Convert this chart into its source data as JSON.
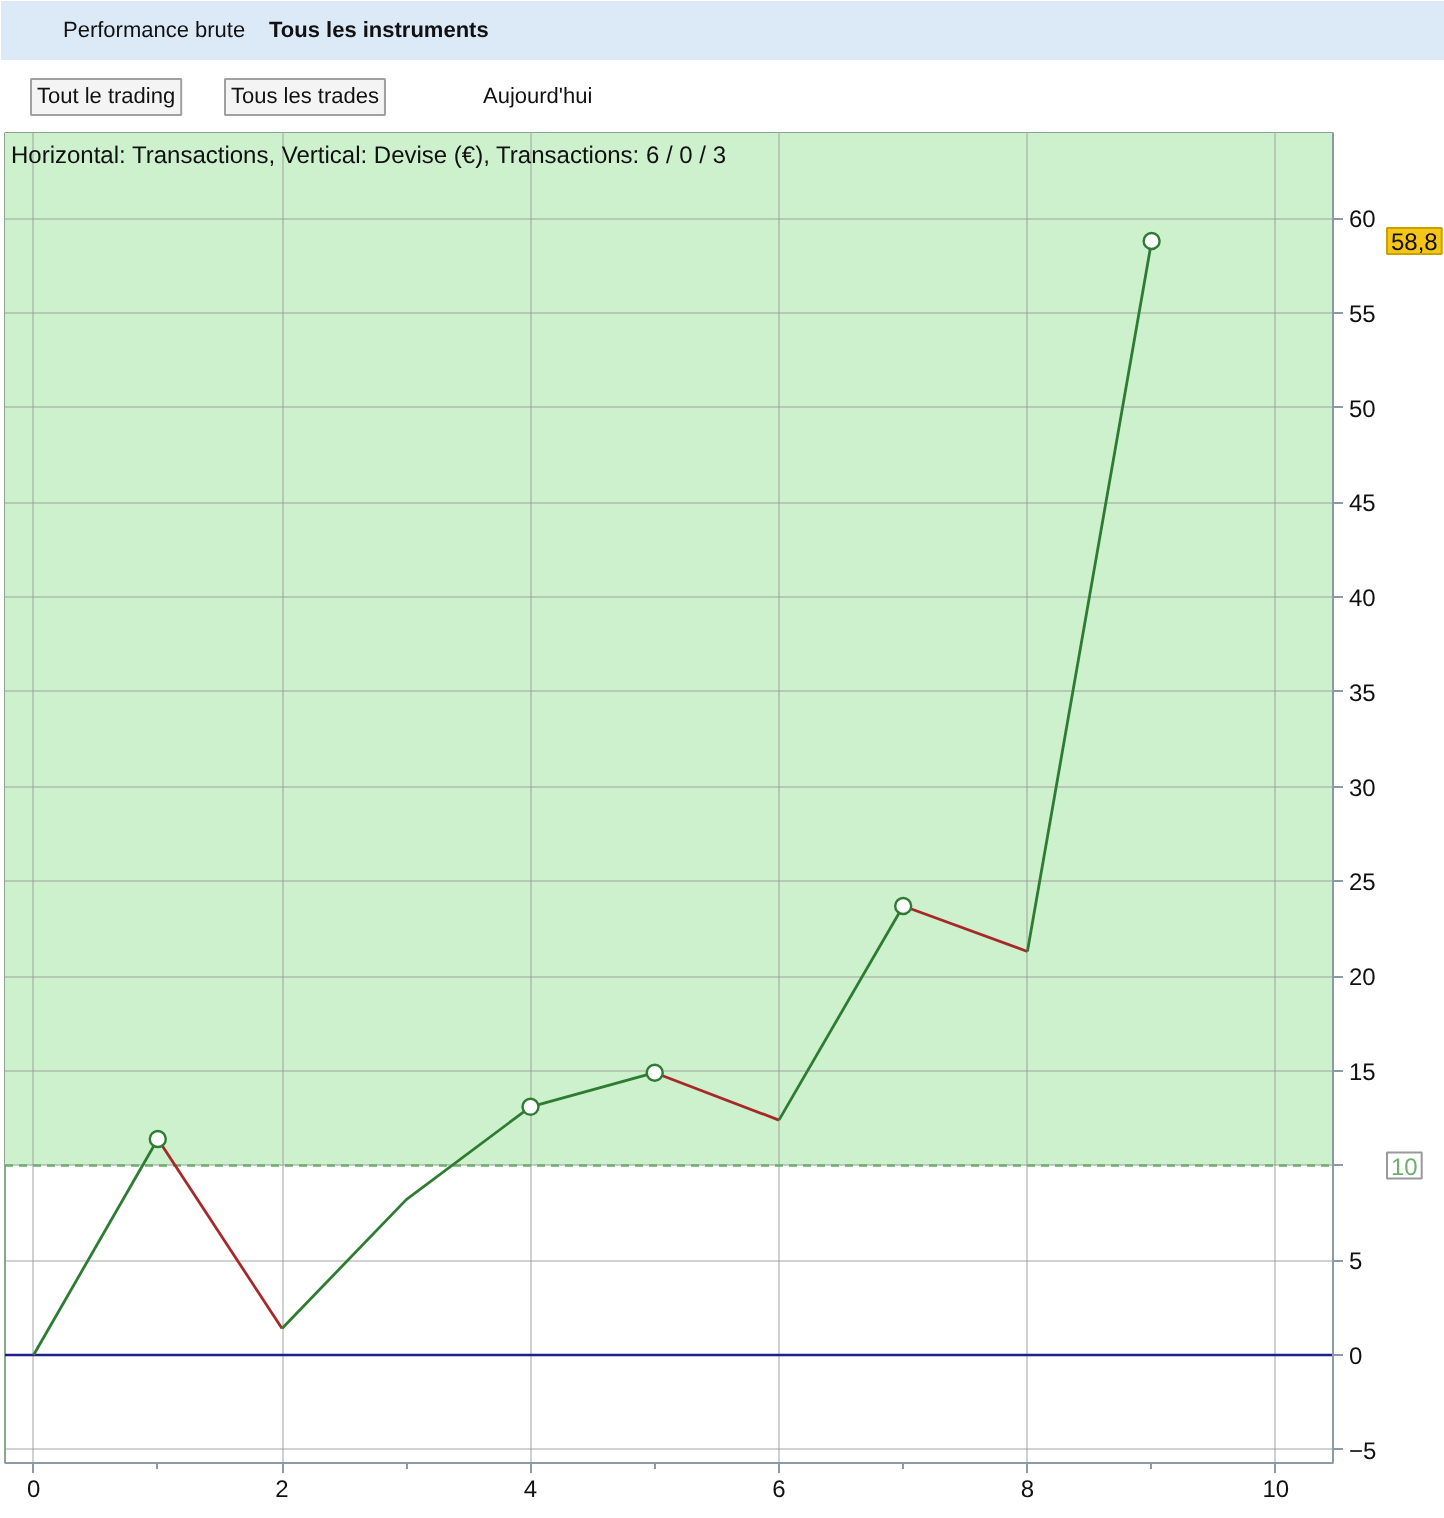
{
  "chart_data": {
    "type": "line",
    "title": "Horizontal: Transactions, Vertical: Devise (€), Transactions: 6 / 0 / 3",
    "annotations": [
      "Performance brute",
      "Tous les instruments",
      "Tout le trading",
      "Tous les trades",
      "Aujourd'hui",
      "58,8"
    ],
    "series": [
      {
        "color": "#2e7b32",
        "x": [
          0,
          1
        ],
        "values": [
          0,
          11.4
        ]
      },
      {
        "color": "#a8282a",
        "x": [
          1,
          2
        ],
        "values": [
          11.4,
          1.4
        ]
      },
      {
        "color": "#2e7b32",
        "x": [
          2,
          3,
          4,
          5
        ],
        "values": [
          1.4,
          8.2,
          13.1,
          14.9
        ]
      },
      {
        "color": "#a8282a",
        "x": [
          5,
          6
        ],
        "values": [
          14.9,
          12.4
        ]
      },
      {
        "color": "#2e7b32",
        "x": [
          6,
          7
        ],
        "values": [
          12.4,
          23.7
        ]
      },
      {
        "color": "#a8282a",
        "x": [
          7,
          8
        ],
        "values": [
          23.7,
          21.3
        ]
      },
      {
        "color": "#2e7b32",
        "x": [
          8,
          9
        ],
        "values": [
          21.3,
          58.8
        ]
      },
      {
        "type": "scatter",
        "marker": "circle",
        "color": "#2e7b32",
        "x": [
          1,
          4,
          5,
          7,
          9
        ],
        "values": [
          11.4,
          13.1,
          14.9,
          23.7,
          58.8
        ]
      }
    ],
    "xlim": [
      -0.23,
      10.46
    ],
    "ylim": [
      -5.7,
      64.5
    ],
    "xticks": [
      0,
      2,
      4,
      6,
      8,
      10
    ],
    "yticks": [
      -5,
      0,
      5,
      {
        "value": 10,
        "label": null
      },
      15,
      20,
      25,
      30,
      35,
      40,
      45,
      50,
      55,
      60
    ],
    "grid": true,
    "ref_lines": [
      {
        "axis": "y",
        "value": 10,
        "label": "10",
        "color": "#6fae6f",
        "line_style": "dashed"
      },
      {
        "axis": "y",
        "value": 0,
        "color": "#1f1f8f"
      }
    ],
    "bands": [
      {
        "axis": "y",
        "from": 10,
        "to": 64.5,
        "color": "#cdf0cd"
      }
    ]
  }
}
